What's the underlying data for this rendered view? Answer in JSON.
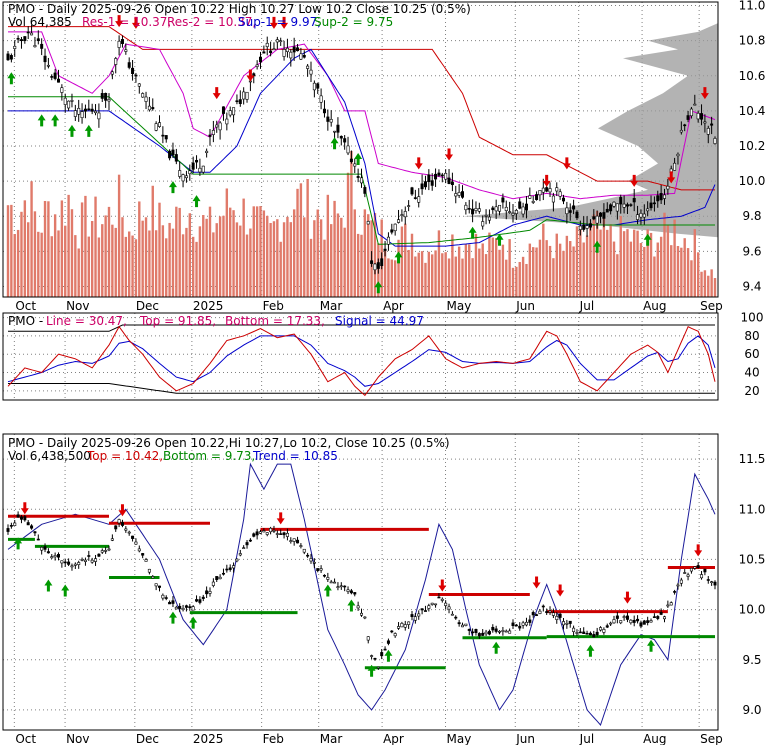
{
  "colors": {
    "frame": "#000000",
    "grid": "#808080",
    "price": "#000000",
    "volume": "#e07a6a",
    "resistance": "#cc0000",
    "support": "#008800",
    "envelope_magenta": "#cc00cc",
    "envelope_blue": "#0000cc",
    "profile": "#999999",
    "bollinger": "#1a1a99",
    "pmo_line": "#cc0000",
    "pmo_signal": "#0000cc",
    "up_arrow": "#009900",
    "down_arrow": "#dd0000",
    "title_red": "#cc0066",
    "title_blue": "#0000cc",
    "title_green": "#008800"
  },
  "panel1": {
    "title_ticker": "PMO - Daily 2025-09-26 Open 10.22  High 10.27  Low 10.2  Close 10.25 (0.5%)",
    "vol_label": "Vol 64,385",
    "res1_label": "Res-1 = 10.37,",
    "res2_label": "Res-2 = 10.37,",
    "sup1_label": "Sup-1 = 9.97,",
    "sup2_label": "Sup-2 = 9.75"
  },
  "panel2": {
    "ticker": "PMO -",
    "line_label": "Line = 30.47,",
    "top_label": "Top = 91.85,",
    "bottom_label": "Bottom = 17.33,",
    "signal_label": "Signal = 44.97"
  },
  "panel3": {
    "title": "PMO - Daily 2025-09-26 Open 10.22,Hi 10.27,Lo 10.2, Close 10.25 (0.5%)",
    "vol_label": "Vol 6,438,500",
    "top_label": "Top = 10.42,",
    "bottom_label": "Bottom = 9.73,",
    "trend_label": "Trend = 10.85"
  },
  "x_labels": [
    "Oct",
    "Nov",
    "Dec",
    "2025",
    "Feb",
    "Mar",
    "Apr",
    "May",
    "Jun",
    "Jul",
    "Aug",
    "Sep"
  ],
  "chart_data": [
    {
      "type": "candlestick",
      "title": "PMO - Daily 2025-09-26 Open 10.22  High 10.27  Low 10.2  Close 10.25 (0.5%)",
      "y_ticks": [
        9.4,
        9.6,
        9.8,
        10.0,
        10.2,
        10.4,
        10.6,
        10.8,
        11.0
      ],
      "ylim": [
        9.34,
        11.02
      ],
      "price_path": [
        [
          0,
          10.68
        ],
        [
          3,
          10.78
        ],
        [
          6,
          10.85
        ],
        [
          9,
          10.78
        ],
        [
          12,
          10.65
        ],
        [
          15,
          10.55
        ],
        [
          18,
          10.45
        ],
        [
          21,
          10.38
        ],
        [
          24,
          10.4
        ],
        [
          27,
          10.42
        ],
        [
          30,
          10.5
        ],
        [
          33,
          10.82
        ],
        [
          35,
          10.72
        ],
        [
          37,
          10.62
        ],
        [
          40,
          10.5
        ],
        [
          43,
          10.4
        ],
        [
          46,
          10.25
        ],
        [
          49,
          10.12
        ],
        [
          52,
          10.05
        ],
        [
          55,
          10.07
        ],
        [
          58,
          10.12
        ],
        [
          61,
          10.28
        ],
        [
          64,
          10.35
        ],
        [
          67,
          10.4
        ],
        [
          70,
          10.5
        ],
        [
          73,
          10.62
        ],
        [
          76,
          10.75
        ],
        [
          79,
          10.77
        ],
        [
          82,
          10.78
        ],
        [
          85,
          10.75
        ],
        [
          88,
          10.7
        ],
        [
          91,
          10.55
        ],
        [
          94,
          10.42
        ],
        [
          97,
          10.28
        ],
        [
          100,
          10.2
        ],
        [
          103,
          10.1
        ],
        [
          106,
          9.95
        ],
        [
          108,
          9.55
        ],
        [
          110,
          9.48
        ],
        [
          112,
          9.6
        ],
        [
          114,
          9.72
        ],
        [
          117,
          9.82
        ],
        [
          120,
          9.9
        ],
        [
          123,
          9.95
        ],
        [
          126,
          10.0
        ],
        [
          129,
          10.05
        ],
        [
          132,
          9.98
        ],
        [
          135,
          9.9
        ],
        [
          138,
          9.83
        ],
        [
          141,
          9.8
        ],
        [
          144,
          9.82
        ],
        [
          147,
          9.85
        ],
        [
          150,
          9.83
        ],
        [
          153,
          9.85
        ],
        [
          156,
          9.9
        ],
        [
          159,
          9.98
        ],
        [
          162,
          9.95
        ],
        [
          165,
          9.9
        ],
        [
          168,
          9.82
        ],
        [
          171,
          9.75
        ],
        [
          174,
          9.75
        ],
        [
          177,
          9.82
        ],
        [
          180,
          9.85
        ],
        [
          183,
          9.88
        ],
        [
          186,
          9.85
        ],
        [
          189,
          9.82
        ],
        [
          192,
          9.88
        ],
        [
          195,
          9.92
        ],
        [
          198,
          10.1
        ],
        [
          201,
          10.35
        ],
        [
          204,
          10.42
        ],
        [
          207,
          10.35
        ],
        [
          210,
          10.25
        ]
      ],
      "volume_relative": [
        0.8,
        0.7,
        0.9,
        0.6,
        0.75,
        0.7,
        0.85,
        0.6,
        0.7,
        0.65,
        0.7,
        0.8,
        0.55,
        0.7,
        0.8,
        0.65,
        0.6,
        0.7,
        0.75,
        0.65,
        0.6,
        0.7,
        0.8,
        0.75,
        0.7,
        0.6,
        0.55,
        0.7,
        0.8,
        0.85,
        0.75,
        0.7,
        0.65,
        0.7,
        1.0,
        0.7,
        0.6,
        0.55,
        0.45,
        0.5,
        0.55,
        0.4,
        0.45,
        0.5,
        0.5,
        0.45,
        0.5,
        0.4,
        0.45,
        0.5,
        0.35,
        0.4,
        0.45,
        0.5,
        0.45,
        0.4,
        0.45,
        0.5,
        0.6,
        0.55,
        0.5,
        0.55,
        0.5,
        0.45,
        0.5,
        0.55,
        0.6,
        0.5,
        0.45,
        0.25,
        0.2
      ]
    },
    {
      "type": "line",
      "title": "PMO - Line = 30.47, Top = 91.85, Bottom = 17.33, Signal = 44.97",
      "y_ticks": [
        20,
        40,
        60,
        80,
        100
      ],
      "ylim": [
        10,
        105
      ],
      "series": [
        {
          "name": "Line",
          "points": [
            [
              0,
              25
            ],
            [
              5,
              45
            ],
            [
              10,
              40
            ],
            [
              15,
              60
            ],
            [
              20,
              55
            ],
            [
              25,
              45
            ],
            [
              30,
              70
            ],
            [
              33,
              90
            ],
            [
              36,
              75
            ],
            [
              40,
              60
            ],
            [
              45,
              35
            ],
            [
              50,
              20
            ],
            [
              55,
              28
            ],
            [
              60,
              50
            ],
            [
              65,
              75
            ],
            [
              70,
              80
            ],
            [
              75,
              88
            ],
            [
              80,
              78
            ],
            [
              85,
              82
            ],
            [
              90,
              60
            ],
            [
              95,
              30
            ],
            [
              100,
              40
            ],
            [
              103,
              25
            ],
            [
              106,
              15
            ],
            [
              110,
              35
            ],
            [
              115,
              55
            ],
            [
              120,
              65
            ],
            [
              125,
              80
            ],
            [
              130,
              55
            ],
            [
              135,
              45
            ],
            [
              140,
              50
            ],
            [
              145,
              52
            ],
            [
              150,
              50
            ],
            [
              155,
              55
            ],
            [
              160,
              85
            ],
            [
              163,
              80
            ],
            [
              166,
              60
            ],
            [
              170,
              30
            ],
            [
              175,
              20
            ],
            [
              180,
              40
            ],
            [
              185,
              60
            ],
            [
              190,
              70
            ],
            [
              193,
              62
            ],
            [
              196,
              40
            ],
            [
              199,
              65
            ],
            [
              202,
              90
            ],
            [
              205,
              85
            ],
            [
              208,
              60
            ],
            [
              210,
              30
            ]
          ]
        },
        {
          "name": "Signal",
          "points": [
            [
              0,
              30
            ],
            [
              5,
              35
            ],
            [
              10,
              40
            ],
            [
              15,
              48
            ],
            [
              20,
              52
            ],
            [
              25,
              50
            ],
            [
              30,
              58
            ],
            [
              33,
              72
            ],
            [
              36,
              74
            ],
            [
              40,
              66
            ],
            [
              45,
              50
            ],
            [
              50,
              35
            ],
            [
              55,
              30
            ],
            [
              60,
              40
            ],
            [
              65,
              58
            ],
            [
              70,
              70
            ],
            [
              75,
              80
            ],
            [
              80,
              80
            ],
            [
              85,
              80
            ],
            [
              90,
              70
            ],
            [
              95,
              50
            ],
            [
              100,
              42
            ],
            [
              103,
              35
            ],
            [
              106,
              25
            ],
            [
              110,
              28
            ],
            [
              115,
              40
            ],
            [
              120,
              52
            ],
            [
              125,
              65
            ],
            [
              130,
              62
            ],
            [
              135,
              52
            ],
            [
              140,
              50
            ],
            [
              145,
              51
            ],
            [
              150,
              50
            ],
            [
              155,
              52
            ],
            [
              160,
              68
            ],
            [
              163,
              75
            ],
            [
              166,
              70
            ],
            [
              170,
              50
            ],
            [
              175,
              32
            ],
            [
              180,
              32
            ],
            [
              185,
              45
            ],
            [
              190,
              58
            ],
            [
              193,
              62
            ],
            [
              196,
              52
            ],
            [
              199,
              55
            ],
            [
              202,
              72
            ],
            [
              205,
              80
            ],
            [
              208,
              70
            ],
            [
              210,
              45
            ]
          ]
        }
      ],
      "top_line": 91.85,
      "bottom_line": 17.33
    },
    {
      "type": "line",
      "title": "PMO - Daily 2025-09-26 Open 10.22,Hi 10.27,Lo 10.2, Close 10.25 (0.5%)",
      "y_ticks": [
        9.0,
        9.5,
        10.0,
        10.5,
        11.0,
        11.5
      ],
      "ylim": [
        8.8,
        11.75
      ],
      "price_path": [
        [
          0,
          10.8
        ],
        [
          3,
          10.9
        ],
        [
          6,
          10.85
        ],
        [
          9,
          10.7
        ],
        [
          12,
          10.55
        ],
        [
          15,
          10.5
        ],
        [
          18,
          10.45
        ],
        [
          21,
          10.48
        ],
        [
          24,
          10.5
        ],
        [
          27,
          10.55
        ],
        [
          30,
          10.6
        ],
        [
          33,
          10.88
        ],
        [
          35,
          10.82
        ],
        [
          37,
          10.72
        ],
        [
          40,
          10.55
        ],
        [
          43,
          10.35
        ],
        [
          46,
          10.15
        ],
        [
          49,
          10.05
        ],
        [
          52,
          10.0
        ],
        [
          55,
          10.05
        ],
        [
          58,
          10.1
        ],
        [
          61,
          10.25
        ],
        [
          64,
          10.35
        ],
        [
          67,
          10.45
        ],
        [
          70,
          10.6
        ],
        [
          73,
          10.72
        ],
        [
          76,
          10.78
        ],
        [
          79,
          10.8
        ],
        [
          82,
          10.75
        ],
        [
          85,
          10.7
        ],
        [
          88,
          10.6
        ],
        [
          91,
          10.45
        ],
        [
          94,
          10.35
        ],
        [
          97,
          10.28
        ],
        [
          100,
          10.2
        ],
        [
          103,
          10.15
        ],
        [
          106,
          9.9
        ],
        [
          108,
          9.55
        ],
        [
          110,
          9.45
        ],
        [
          112,
          9.6
        ],
        [
          114,
          9.75
        ],
        [
          117,
          9.85
        ],
        [
          120,
          9.92
        ],
        [
          123,
          10.0
        ],
        [
          126,
          10.05
        ],
        [
          129,
          10.12
        ],
        [
          132,
          9.95
        ],
        [
          135,
          9.85
        ],
        [
          138,
          9.78
        ],
        [
          141,
          9.75
        ],
        [
          144,
          9.78
        ],
        [
          147,
          9.8
        ],
        [
          150,
          9.82
        ],
        [
          153,
          9.85
        ],
        [
          156,
          9.92
        ],
        [
          159,
          10.0
        ],
        [
          162,
          9.97
        ],
        [
          165,
          9.9
        ],
        [
          168,
          9.8
        ],
        [
          171,
          9.74
        ],
        [
          174,
          9.75
        ],
        [
          177,
          9.82
        ],
        [
          180,
          9.88
        ],
        [
          183,
          9.92
        ],
        [
          186,
          9.88
        ],
        [
          189,
          9.85
        ],
        [
          192,
          9.9
        ],
        [
          195,
          9.95
        ],
        [
          198,
          10.15
        ],
        [
          201,
          10.35
        ],
        [
          204,
          10.42
        ],
        [
          207,
          10.35
        ],
        [
          210,
          10.25
        ]
      ]
    }
  ]
}
